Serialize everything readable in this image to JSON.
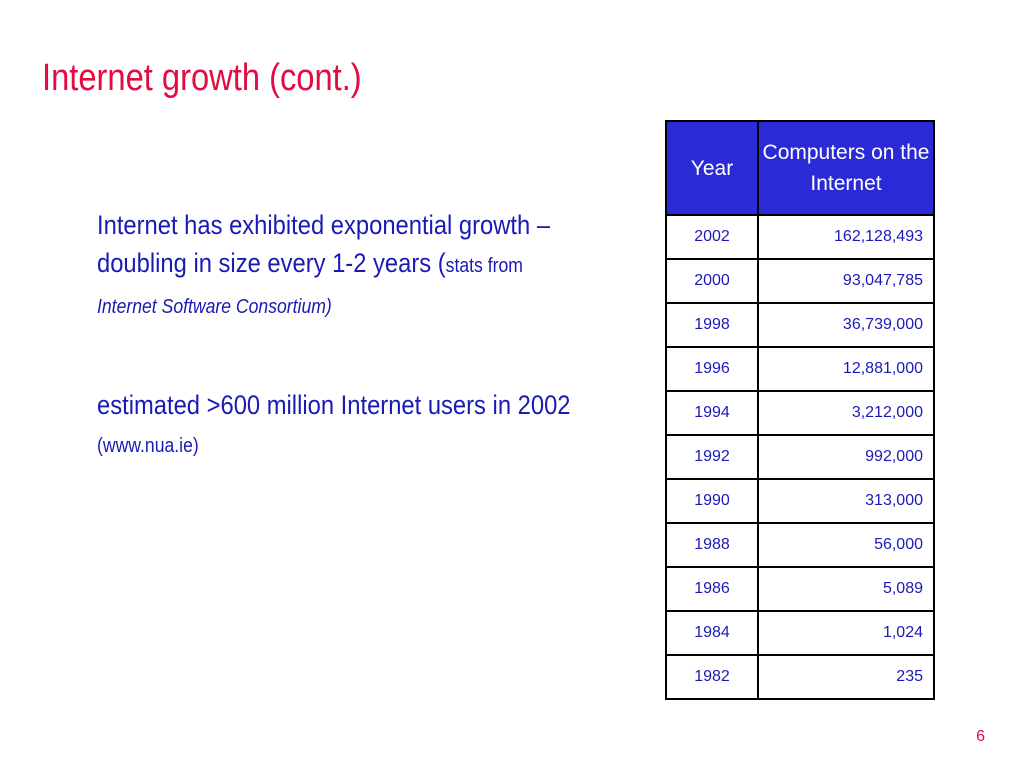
{
  "slide": {
    "title": "Internet growth (cont.)",
    "page_number": "6",
    "colors": {
      "title": "#e30b3f",
      "body_text": "#1a1ab5",
      "table_header_bg": "#2a2ad7",
      "table_header_text": "#ffffff"
    }
  },
  "bullets": [
    {
      "main": "Internet has exhibited exponential growth – doubling in size every 1-2 years  (",
      "source_small": "stats from",
      "source_italic": "Internet Software Consortium)"
    },
    {
      "main": "estimated >600 million Internet users in 2002 ",
      "source_small": "(www.nua.ie)"
    }
  ],
  "table": {
    "headers": [
      "Year",
      "Computers on the Internet"
    ],
    "rows": [
      {
        "year": "2002",
        "computers": "162,128,493"
      },
      {
        "year": "2000",
        "computers": "93,047,785"
      },
      {
        "year": "1998",
        "computers": "36,739,000"
      },
      {
        "year": "1996",
        "computers": "12,881,000"
      },
      {
        "year": "1994",
        "computers": "3,212,000"
      },
      {
        "year": "1992",
        "computers": "992,000"
      },
      {
        "year": "1990",
        "computers": "313,000"
      },
      {
        "year": "1988",
        "computers": "56,000"
      },
      {
        "year": "1986",
        "computers": "5,089"
      },
      {
        "year": "1984",
        "computers": "1,024"
      },
      {
        "year": "1982",
        "computers": "235"
      }
    ]
  }
}
